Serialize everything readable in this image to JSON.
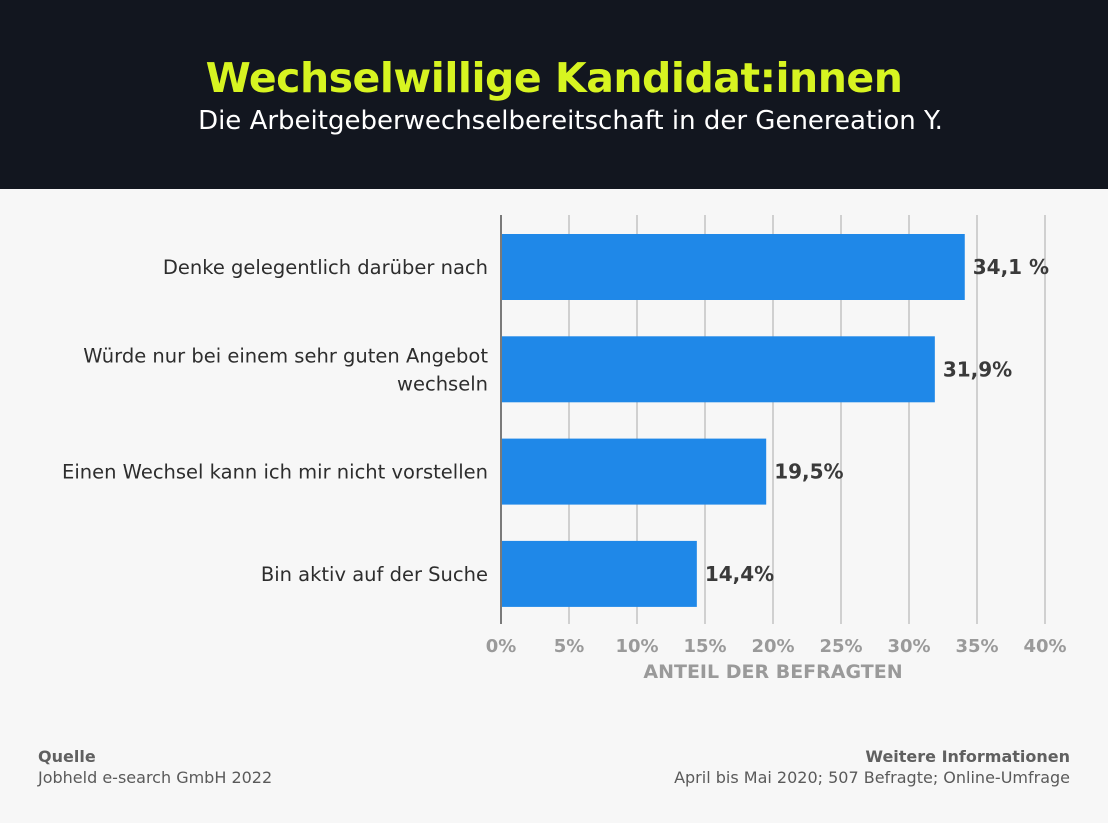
{
  "header": {
    "title": "Wechselwillige Kandidat:innen",
    "subtitle": "Die Arbeitgeberwechselbereitschaft in der Genereation Y."
  },
  "chart_data": {
    "type": "bar",
    "orientation": "horizontal",
    "categories": [
      "Denke gelegentlich darüber nach",
      "Würde nur bei einem sehr guten Angebot wechseln",
      "Einen Wechsel kann ich mir nicht vorstellen",
      "Bin aktiv auf der Suche"
    ],
    "category_lines": [
      [
        "Denke gelegentlich darüber nach"
      ],
      [
        "Würde nur bei einem sehr guten Angebot",
        "wechseln"
      ],
      [
        "Einen Wechsel kann ich mir nicht vorstellen"
      ],
      [
        "Bin aktiv auf der Suche"
      ]
    ],
    "values": [
      34.1,
      31.9,
      19.5,
      14.4
    ],
    "value_labels": [
      "34,1 %",
      "31,9%",
      "19,5%",
      "14,4%"
    ],
    "xlim": [
      0,
      40
    ],
    "ticks": [
      0,
      5,
      10,
      15,
      20,
      25,
      30,
      35,
      40
    ],
    "tick_labels": [
      "0%",
      "5%",
      "10%",
      "15%",
      "20%",
      "25%",
      "30%",
      "35%",
      "40%"
    ],
    "xlabel": "ANTEIL DER BEFRAGTEN",
    "grid": true,
    "bar_color": "#1f88e8"
  },
  "footer": {
    "source_heading": "Quelle",
    "source_text": "Jobheld e-search GmbH 2022",
    "info_heading": "Weitere Informationen",
    "info_text": "April bis Mai 2020; 507 Befragte; Online-Umfrage"
  }
}
